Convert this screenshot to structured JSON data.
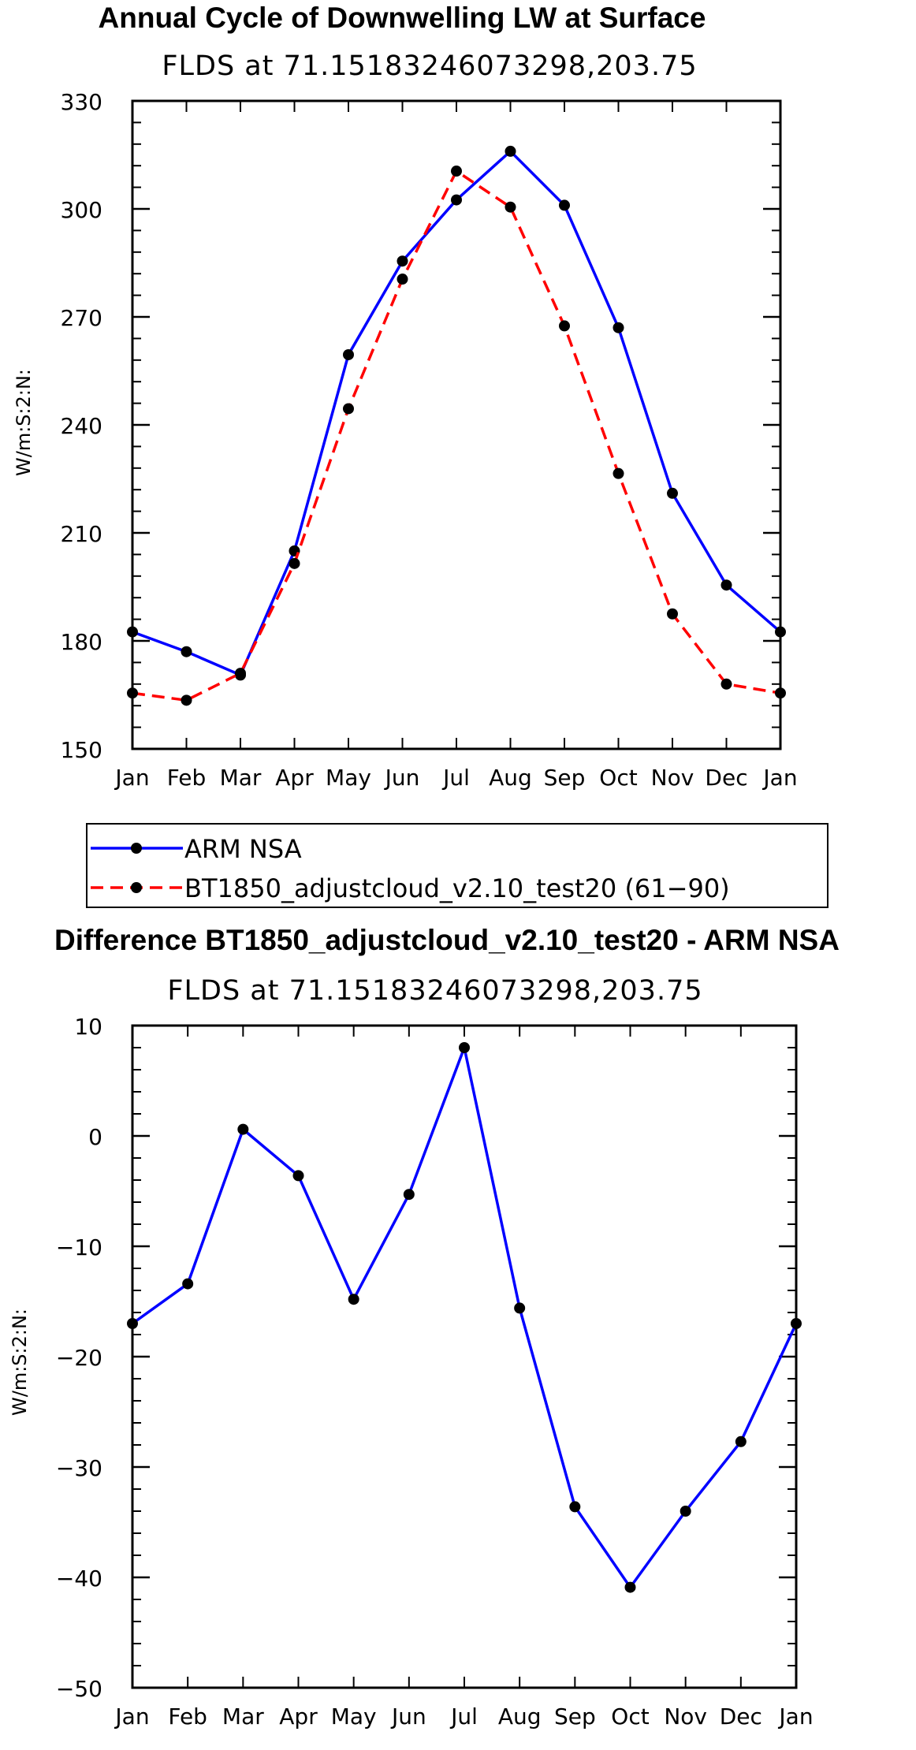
{
  "chart_data": [
    {
      "type": "line",
      "title": "Annual Cycle of Downwelling LW at Surface",
      "subtitle": "FLDS at 71.15183246073298,203.75",
      "xlabel": "",
      "ylabel": "W/m:S:2:N:",
      "categories": [
        "Jan",
        "Feb",
        "Mar",
        "Apr",
        "May",
        "Jun",
        "Jul",
        "Aug",
        "Sep",
        "Oct",
        "Nov",
        "Dec",
        "Jan"
      ],
      "ylim": [
        150,
        330
      ],
      "yticks": [
        150,
        180,
        210,
        240,
        270,
        300,
        330
      ],
      "ytick_labels": [
        "150",
        "180",
        "210",
        "240",
        "270",
        "300",
        "330"
      ],
      "series": [
        {
          "name": "ARM NSA",
          "color": "#0000ff",
          "dash": "solid",
          "values": [
            182.5,
            177,
            170.5,
            205,
            259.5,
            285.5,
            302.5,
            316,
            301,
            267,
            221,
            195.5,
            182.5
          ]
        },
        {
          "name": "BT1850_adjustcloud_v2.10_test20 (61−90)",
          "color": "#ff0000",
          "dash": "dashed",
          "values": [
            165.5,
            163.5,
            171,
            201.5,
            244.5,
            280.5,
            310.5,
            300.5,
            267.5,
            226.5,
            187.5,
            168,
            165.5
          ]
        }
      ],
      "legend_placement": "below"
    },
    {
      "type": "line",
      "title": "Difference BT1850_adjustcloud_v2.10_test20 - ARM NSA",
      "subtitle": "FLDS at 71.15183246073298,203.75",
      "xlabel": "",
      "ylabel": "W/m:S:2:N:",
      "categories": [
        "Jan",
        "Feb",
        "Mar",
        "Apr",
        "May",
        "Jun",
        "Jul",
        "Aug",
        "Sep",
        "Oct",
        "Nov",
        "Dec",
        "Jan"
      ],
      "ylim": [
        -50,
        10
      ],
      "yticks": [
        -50,
        -40,
        -30,
        -20,
        -10,
        0,
        10
      ],
      "ytick_labels": [
        "−50",
        "−40",
        "−30",
        "−20",
        "−10",
        "0",
        "10"
      ],
      "series": [
        {
          "name": "Difference",
          "color": "#0000ff",
          "dash": "solid",
          "values": [
            -17,
            -13.4,
            0.6,
            -3.6,
            -14.8,
            -5.3,
            8,
            -15.6,
            -33.6,
            -40.9,
            -34,
            -27.7,
            -17
          ]
        }
      ]
    }
  ]
}
